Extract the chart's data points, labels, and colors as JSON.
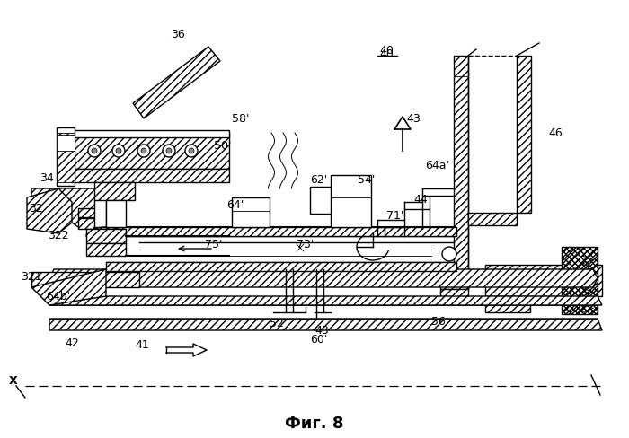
{
  "fig_label": "Фиг. 8",
  "title_fontsize": 13,
  "background_color": "#ffffff",
  "figsize": [
    7.0,
    4.88
  ],
  "dpi": 100,
  "labels": [
    [
      "36",
      198,
      38
    ],
    [
      "40",
      430,
      60
    ],
    [
      "46",
      618,
      148
    ],
    [
      "58'",
      268,
      133
    ],
    [
      "43",
      460,
      133
    ],
    [
      "50'",
      248,
      163
    ],
    [
      "34",
      52,
      198
    ],
    [
      "62'",
      355,
      200
    ],
    [
      "54'",
      408,
      200
    ],
    [
      "64a'",
      487,
      185
    ],
    [
      "44",
      468,
      222
    ],
    [
      "32",
      40,
      233
    ],
    [
      "64'",
      262,
      228
    ],
    [
      "71'",
      440,
      240
    ],
    [
      "322",
      65,
      263
    ],
    [
      "75'",
      238,
      272
    ],
    [
      "73'",
      340,
      272
    ],
    [
      "321",
      35,
      308
    ],
    [
      "64b'",
      65,
      330
    ],
    [
      "52",
      308,
      360
    ],
    [
      "43",
      358,
      368
    ],
    [
      "60'",
      355,
      378
    ],
    [
      "56'",
      490,
      358
    ],
    [
      "42",
      80,
      382
    ],
    [
      "41",
      158,
      385
    ]
  ]
}
